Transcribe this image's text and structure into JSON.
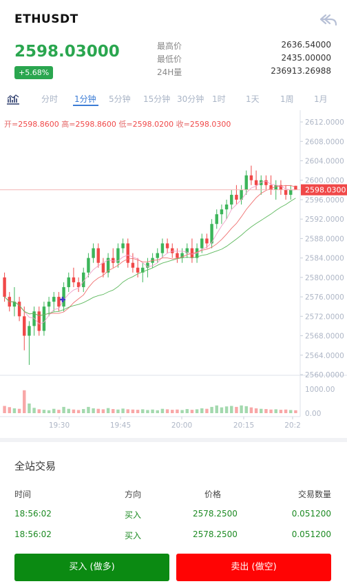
{
  "header": {
    "symbol": "ETHUSDT",
    "price": "2598.03000",
    "change": "+5.68%",
    "stats": [
      {
        "label": "最高价",
        "value": "2636.54000"
      },
      {
        "label": "最低价",
        "value": "2435.00000"
      },
      {
        "label": "24H量",
        "value": "236913.26988"
      }
    ]
  },
  "tabs": {
    "items": [
      "分时",
      "1分钟",
      "5分钟",
      "15分钟",
      "30分钟",
      "1时",
      "1天",
      "1周",
      "1月"
    ],
    "active": "1分钟"
  },
  "ohlc": {
    "open_label": "开=",
    "open": "2598.8600",
    "high_label": "高=",
    "high": "2598.8600",
    "low_label": "低=",
    "low": "2598.0200",
    "close_label": "收=",
    "close": "2598.0300"
  },
  "chart_data": {
    "type": "candlestick",
    "y_ticks": [
      "2612.0000",
      "2608.0000",
      "2604.0000",
      "2600.0000",
      "2596.0000",
      "2592.0000",
      "2588.0000",
      "2584.0000",
      "2580.0000",
      "2576.0000",
      "2572.0000",
      "2568.0000",
      "2564.0000",
      "2560.0000"
    ],
    "ylim": [
      2560,
      2613
    ],
    "current_price_label": "2598.0300",
    "current_price": 2598.03,
    "x_ticks": [
      "19:30",
      "19:45",
      "20:00",
      "20:15",
      "20:2"
    ],
    "volume_ticks": [
      "1000.00",
      "0.00"
    ],
    "colors": {
      "up": "#3cb55a",
      "down": "#f04848",
      "ma1": "#f0a0c8",
      "ma2": "#f07070",
      "ma3": "#5cb85c"
    },
    "candles": [
      [
        2580,
        2581,
        2575,
        2576
      ],
      [
        2576,
        2577,
        2573,
        2574
      ],
      [
        2574,
        2578,
        2572,
        2575
      ],
      [
        2575,
        2576,
        2571,
        2572
      ],
      [
        2572,
        2574,
        2565,
        2568
      ],
      [
        2568,
        2571,
        2562,
        2570
      ],
      [
        2570,
        2574,
        2568,
        2573
      ],
      [
        2573,
        2574,
        2568,
        2569
      ],
      [
        2569,
        2575,
        2568,
        2574
      ],
      [
        2574,
        2576,
        2572,
        2575
      ],
      [
        2575,
        2577,
        2573,
        2576
      ],
      [
        2576,
        2577,
        2573,
        2574
      ],
      [
        2574,
        2579,
        2573,
        2578
      ],
      [
        2578,
        2581,
        2577,
        2580
      ],
      [
        2580,
        2582,
        2578,
        2579
      ],
      [
        2579,
        2580,
        2577,
        2578
      ],
      [
        2578,
        2582,
        2577,
        2581
      ],
      [
        2581,
        2585,
        2580,
        2584
      ],
      [
        2584,
        2587,
        2583,
        2586
      ],
      [
        2586,
        2587,
        2582,
        2583
      ],
      [
        2583,
        2584,
        2580,
        2581
      ],
      [
        2581,
        2585,
        2580,
        2584
      ],
      [
        2584,
        2586,
        2582,
        2583
      ],
      [
        2583,
        2587,
        2582,
        2586
      ],
      [
        2586,
        2588,
        2585,
        2587
      ],
      [
        2587,
        2588,
        2582,
        2583
      ],
      [
        2583,
        2585,
        2581,
        2582
      ],
      [
        2582,
        2584,
        2580,
        2581
      ],
      [
        2581,
        2583,
        2579,
        2582
      ],
      [
        2582,
        2584,
        2580,
        2583
      ],
      [
        2583,
        2585,
        2582,
        2584
      ],
      [
        2584,
        2586,
        2583,
        2585
      ],
      [
        2585,
        2588,
        2584,
        2587
      ],
      [
        2587,
        2588,
        2585,
        2586
      ],
      [
        2586,
        2587,
        2584,
        2585
      ],
      [
        2585,
        2586,
        2583,
        2584
      ],
      [
        2584,
        2586,
        2583,
        2585
      ],
      [
        2585,
        2587,
        2584,
        2586
      ],
      [
        2586,
        2588,
        2583,
        2584
      ],
      [
        2584,
        2587,
        2583,
        2586
      ],
      [
        2586,
        2589,
        2585,
        2588
      ],
      [
        2588,
        2589,
        2586,
        2587
      ],
      [
        2587,
        2592,
        2586,
        2591
      ],
      [
        2591,
        2594,
        2590,
        2593
      ],
      [
        2593,
        2595,
        2591,
        2594
      ],
      [
        2594,
        2596,
        2592,
        2595
      ],
      [
        2595,
        2598,
        2594,
        2597
      ],
      [
        2597,
        2599,
        2595,
        2596
      ],
      [
        2596,
        2599,
        2595,
        2598
      ],
      [
        2598,
        2602,
        2597,
        2601
      ],
      [
        2601,
        2603,
        2599,
        2600
      ],
      [
        2600,
        2602,
        2598,
        2599
      ],
      [
        2599,
        2601,
        2597,
        2600
      ],
      [
        2600,
        2601,
        2598,
        2599
      ],
      [
        2599,
        2601,
        2597,
        2598
      ],
      [
        2598,
        2600,
        2596,
        2599
      ],
      [
        2599,
        2600,
        2597,
        2598
      ],
      [
        2598,
        2599,
        2596,
        2597
      ],
      [
        2597,
        2599,
        2596,
        2598
      ],
      [
        2598.86,
        2598.86,
        2598.02,
        2598.03
      ]
    ],
    "volumes": [
      300,
      250,
      200,
      180,
      950,
      400,
      220,
      160,
      140,
      120,
      180,
      140,
      260,
      180,
      150,
      130,
      170,
      260,
      200,
      180,
      160,
      210,
      170,
      150,
      190,
      160,
      150,
      140,
      160,
      130,
      150,
      120,
      180,
      160,
      140,
      150,
      130,
      170,
      140,
      160,
      200,
      180,
      260,
      320,
      240,
      280,
      300,
      260,
      320,
      290,
      240,
      200,
      180,
      170,
      150,
      160,
      140,
      150,
      130,
      120
    ]
  },
  "trades": {
    "title": "全站交易",
    "headers": {
      "time": "时间",
      "direction": "方向",
      "price": "价格",
      "amount": "交易数量"
    },
    "rows": [
      {
        "time": "18:56:02",
        "direction": "买入",
        "price": "2578.2500",
        "amount": "0.051200"
      },
      {
        "time": "18:56:02",
        "direction": "买入",
        "price": "2578.2500",
        "amount": "0.051200"
      }
    ]
  },
  "actions": {
    "buy": "买入 (做多)",
    "sell": "卖出 (做空)"
  }
}
